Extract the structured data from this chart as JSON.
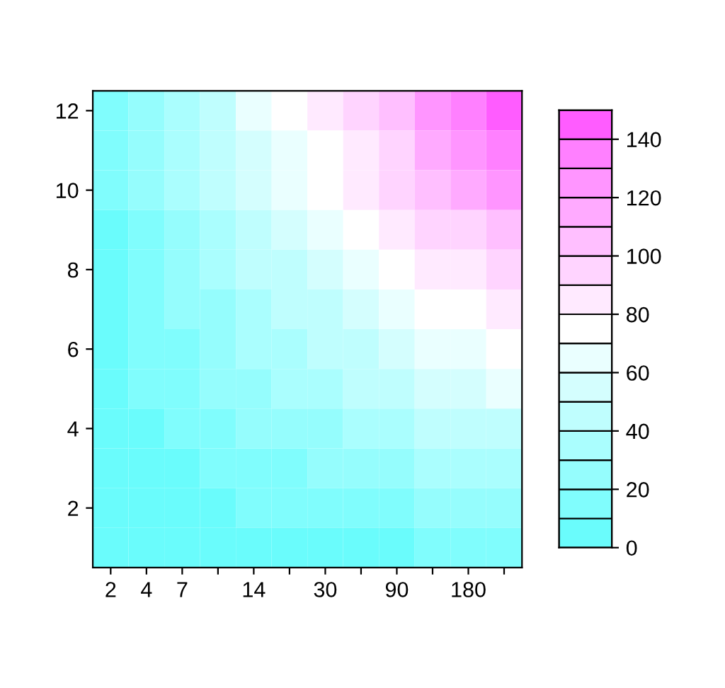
{
  "chart_data": {
    "type": "heatmap",
    "categories": [
      "2",
      "4",
      "7",
      null,
      "14",
      null,
      "30",
      null,
      "90",
      null,
      "180",
      null
    ],
    "ylim": [
      0.5,
      12.5
    ],
    "yticks": [
      2,
      4,
      6,
      8,
      10,
      12
    ],
    "cells": [
      [
        12,
        24,
        36,
        48,
        60,
        72,
        84,
        96,
        108,
        120,
        132,
        144
      ],
      [
        11,
        22,
        33,
        44,
        55,
        66,
        77,
        88,
        99,
        110,
        121,
        132
      ],
      [
        10,
        20,
        30,
        40,
        50,
        60,
        70,
        80,
        90,
        100,
        110,
        120
      ],
      [
        9,
        18,
        27,
        36,
        45,
        54,
        63,
        72,
        81,
        90,
        99,
        108
      ],
      [
        8,
        16,
        24,
        32,
        40,
        48,
        56,
        64,
        72,
        80,
        88,
        96
      ],
      [
        7,
        14,
        21,
        28,
        35,
        42,
        49,
        56,
        63,
        70,
        77,
        84
      ],
      [
        6,
        12,
        18,
        24,
        30,
        36,
        42,
        48,
        54,
        60,
        66,
        72
      ],
      [
        5,
        10,
        15,
        20,
        25,
        30,
        35,
        40,
        45,
        50,
        55,
        60
      ],
      [
        4,
        8,
        12,
        16,
        20,
        24,
        28,
        32,
        36,
        40,
        44,
        48
      ],
      [
        3,
        6,
        9,
        12,
        15,
        18,
        21,
        24,
        27,
        30,
        33,
        36
      ],
      [
        2,
        4,
        6,
        8,
        10,
        12,
        14,
        16,
        18,
        20,
        22,
        24
      ],
      [
        1,
        2,
        3,
        4,
        5,
        6,
        7,
        8,
        9,
        10,
        11,
        12
      ]
    ],
    "clim": [
      0,
      150
    ],
    "cticks": [
      0,
      20,
      40,
      60,
      80,
      100,
      120,
      140
    ],
    "colors": [
      "#6afcfc",
      "#80fdfd",
      "#95fdfd",
      "#aafefe",
      "#bffefe",
      "#d4fefe",
      "#eaffff",
      "#ffffff",
      "#ffeaff",
      "#ffd4ff",
      "#ffbfff",
      "#ffaaff",
      "#ff95ff",
      "#ff80ff",
      "#ff5cff"
    ],
    "grid": false
  }
}
